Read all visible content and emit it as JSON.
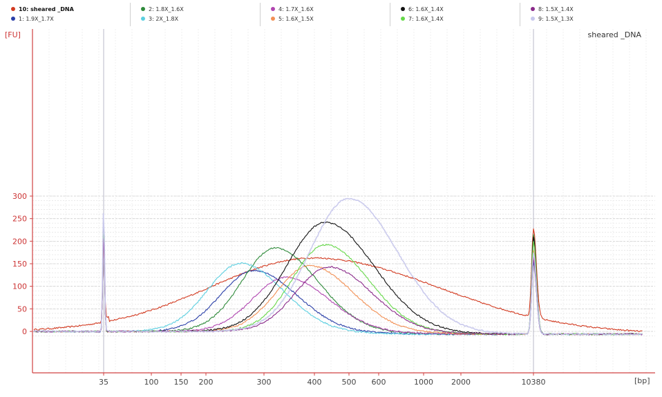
{
  "legend": [
    {
      "label": "10: sheared _DNA",
      "color": "#d23a20",
      "bold": true
    },
    {
      "label": "1: 1.9X_1.7X",
      "color": "#2a3fa8"
    },
    {
      "label": "2: 1.8X_1.6X",
      "color": "#2e8a3a"
    },
    {
      "label": "3: 2X_1.8X",
      "color": "#5ccfe0"
    },
    {
      "label": "4: 1.7X_1.6X",
      "color": "#b045b0"
    },
    {
      "label": "5: 1.6X_1.5X",
      "color": "#f29055"
    },
    {
      "label": "6: 1.6X_1.4X",
      "color": "#111111"
    },
    {
      "label": "7: 1.6X_1.4X",
      "color": "#66d84a"
    },
    {
      "label": "8: 1.5X_1.4X",
      "color": "#8a2a8a"
    },
    {
      "label": "9: 1.5X_1.3X",
      "color": "#c8c8ec"
    }
  ],
  "chart_data": {
    "type": "line",
    "title": "sheared _DNA",
    "ylabel": "[FU]",
    "xlabel": "[bp]",
    "xscale": "log (bp, electropherogram)",
    "ylim": [
      -10,
      300
    ],
    "yticks": [
      0,
      50,
      100,
      150,
      200,
      250,
      300
    ],
    "xtick_labels": [
      "35",
      "100",
      "150",
      "200",
      "300",
      "400",
      "500",
      "600",
      "1000",
      "2000",
      "10380"
    ],
    "grid": true,
    "axis_color": "#d04040",
    "markers": {
      "lower_marker_bp": 35,
      "upper_marker_bp": 10380
    },
    "series": [
      {
        "name": "10: sheared _DNA",
        "color": "#d23a20",
        "peak_bp": 400,
        "peak_fu": 163,
        "lower_marker_fu": 215,
        "upper_marker_fu": 195
      },
      {
        "name": "1: 1.9X_1.7X",
        "color": "#2a3fa8",
        "peak_bp": 280,
        "peak_fu": 135,
        "lower_marker_fu": 225,
        "upper_marker_fu": 160
      },
      {
        "name": "2: 1.8X_1.6X",
        "color": "#2e8a3a",
        "peak_bp": 320,
        "peak_fu": 185,
        "lower_marker_fu": 245,
        "upper_marker_fu": 220
      },
      {
        "name": "3: 2X_1.8X",
        "color": "#5ccfe0",
        "peak_bp": 255,
        "peak_fu": 151,
        "lower_marker_fu": 232,
        "upper_marker_fu": 175
      },
      {
        "name": "4: 1.7X_1.6X",
        "color": "#b045b0",
        "peak_bp": 340,
        "peak_fu": 120,
        "lower_marker_fu": 220,
        "upper_marker_fu": 170
      },
      {
        "name": "5: 1.6X_1.5X",
        "color": "#f29055",
        "peak_bp": 390,
        "peak_fu": 146,
        "lower_marker_fu": 220,
        "upper_marker_fu": 185
      },
      {
        "name": "6: 1.6X_1.4X",
        "color": "#111111",
        "peak_bp": 430,
        "peak_fu": 242,
        "lower_marker_fu": 240,
        "upper_marker_fu": 215
      },
      {
        "name": "7: 1.6X_1.4X",
        "color": "#66d84a",
        "peak_bp": 430,
        "peak_fu": 192,
        "lower_marker_fu": 235,
        "upper_marker_fu": 205
      },
      {
        "name": "8: 1.5X_1.4X",
        "color": "#8a2a8a",
        "peak_bp": 440,
        "peak_fu": 143,
        "lower_marker_fu": 222,
        "upper_marker_fu": 165
      },
      {
        "name": "9: 1.5X_1.3X",
        "color": "#c8c8ec",
        "peak_bp": 500,
        "peak_fu": 295,
        "lower_marker_fu": 280,
        "upper_marker_fu": 180
      }
    ]
  }
}
